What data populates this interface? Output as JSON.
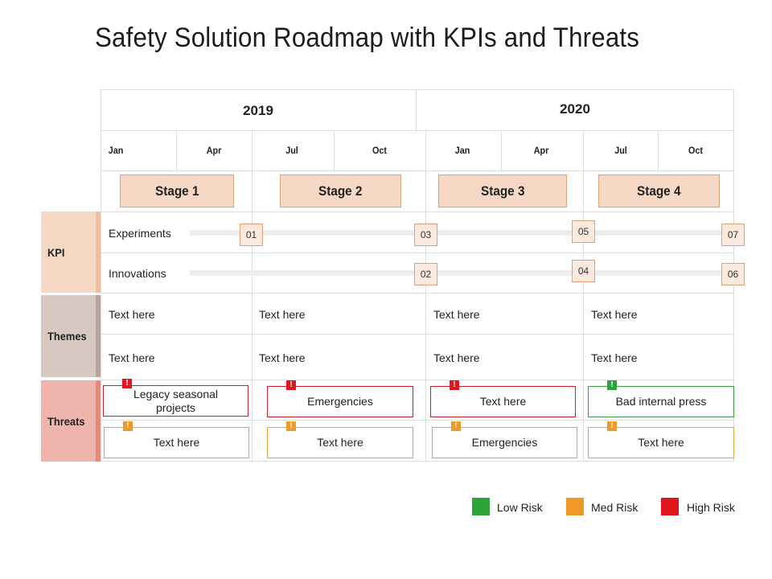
{
  "title": "Safety Solution Roadmap with KPIs and Threats",
  "years": [
    "2019",
    "2020"
  ],
  "months": [
    "Jan",
    "Apr",
    "Jul",
    "Oct",
    "Jan",
    "Apr",
    "Jul",
    "Oct"
  ],
  "stages": [
    "Stage 1",
    "Stage 2",
    "Stage 3",
    "Stage 4"
  ],
  "row_labels": {
    "kpi": "KPI",
    "themes": "Themes",
    "threats": "Threats"
  },
  "kpi_rows": [
    {
      "label": "Experiments",
      "markers": [
        "01",
        "03",
        "05",
        "07"
      ]
    },
    {
      "label": "Innovations",
      "markers": [
        "02",
        "04",
        "06"
      ]
    }
  ],
  "themes": [
    [
      "Text here",
      "Text here",
      "Text here",
      "Text here"
    ],
    [
      "Text here",
      "Text here",
      "Text here",
      "Text here"
    ]
  ],
  "threats": [
    [
      {
        "text": "Legacy seasonal projects",
        "risk": "high"
      },
      {
        "text": "Emergencies",
        "risk": "high"
      },
      {
        "text": "Text here",
        "risk": "high"
      },
      {
        "text": "Bad internal press",
        "risk": "low"
      }
    ],
    [
      {
        "text": "Text here",
        "risk": "med"
      },
      {
        "text": "Text here",
        "risk": "med"
      },
      {
        "text": "Emergencies",
        "risk": "med"
      },
      {
        "text": "Text here",
        "risk": "med"
      }
    ]
  ],
  "badge_symbol": "!",
  "legend": [
    {
      "label": "Low Risk",
      "color": "#2ea33a"
    },
    {
      "label": "Med Risk",
      "color": "#ef9a26"
    },
    {
      "label": "High Risk",
      "color": "#e0161f"
    }
  ],
  "colors": {
    "high": "#e0161f",
    "med": "#ef9a26",
    "low": "#2ea33a",
    "kpi_fill": "#f6d8c5",
    "themes_fill": "#d7c9c2",
    "threats_fill": "#efb4ab"
  }
}
